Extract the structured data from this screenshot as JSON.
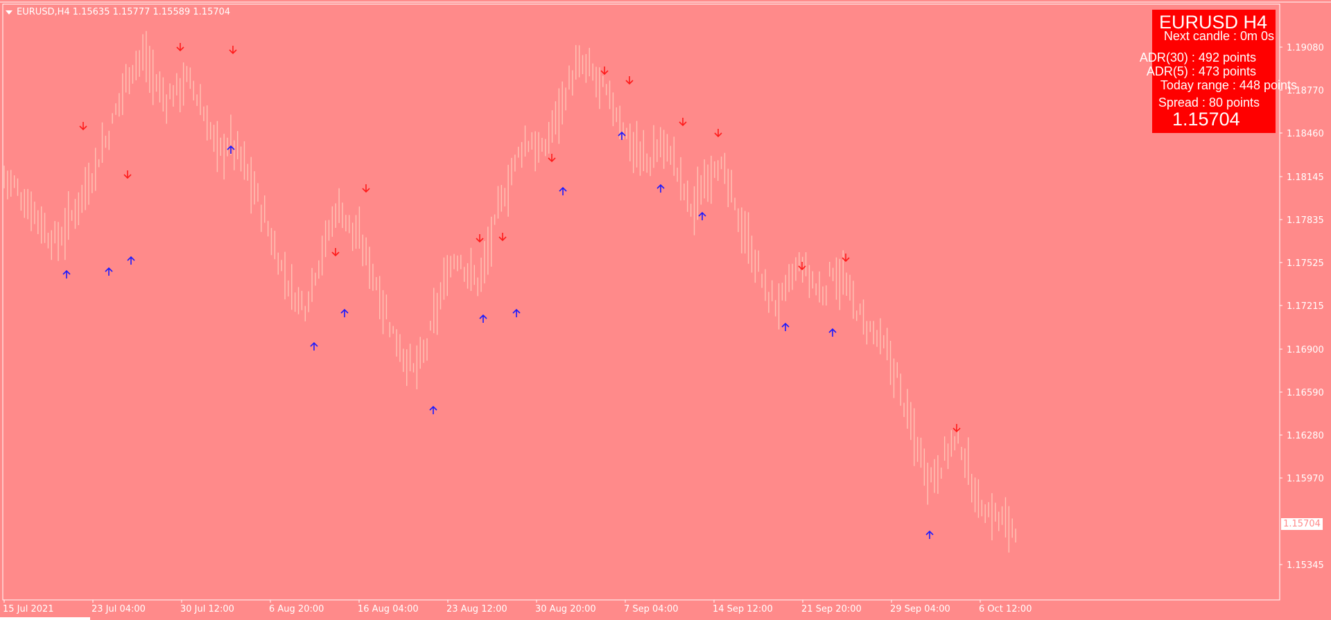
{
  "header": {
    "symbol_label": "EURUSD,H4",
    "ohlc": "1.15635 1.15777 1.15589 1.15704"
  },
  "info_panel": {
    "title": "EURUSD H4",
    "next_candle": "Next candle : 0m 0s",
    "adr30": "ADR(30) : 492 points",
    "adr5": "ADR(5) : 473 points",
    "today_range": "Today range : 448 points",
    "spread": "Spread : 80 points",
    "price": "1.15704",
    "background_color": "#ff0000"
  },
  "colors": {
    "background": "#ff8a8a",
    "bars": "#ffc4b6",
    "grid_axis": "#ffffff",
    "up_arrow": "#1a1aff",
    "down_arrow": "#ff1a1a"
  },
  "current_price_tag": "1.15704",
  "chart_data": {
    "type": "bar",
    "title": "EURUSD,H4",
    "xlabel": "",
    "ylabel": "",
    "ylim": [
      1.1517,
      1.1932
    ],
    "y_ticks": [
      "1.19080",
      "1.18770",
      "1.18460",
      "1.18145",
      "1.17835",
      "1.17525",
      "1.17215",
      "1.16900",
      "1.16590",
      "1.16280",
      "1.15970",
      "1.15345"
    ],
    "x_ticks": [
      "15 Jul 2021",
      "23 Jul 04:00",
      "30 Jul 12:00",
      "6 Aug 20:00",
      "16 Aug 04:00",
      "23 Aug 12:00",
      "30 Aug 20:00",
      "7 Sep 04:00",
      "14 Sep 12:00",
      "21 Sep 20:00",
      "29 Sep 04:00",
      "6 Oct 12:00"
    ],
    "grid": false,
    "series": [
      {
        "values_close": [
          1.1815,
          1.1808,
          1.1795,
          1.1789,
          1.1772,
          1.1768,
          1.1781,
          1.1798,
          1.1812,
          1.1832,
          1.1851,
          1.1878,
          1.1895,
          1.1902,
          1.1884,
          1.187,
          1.1877,
          1.1885,
          1.1872,
          1.185,
          1.1832,
          1.184,
          1.1828,
          1.181,
          1.179,
          1.1765,
          1.1745,
          1.1728,
          1.1722,
          1.1748,
          1.177,
          1.1795,
          1.178,
          1.1768,
          1.1752,
          1.1728,
          1.1705,
          1.1688,
          1.1674,
          1.1685,
          1.1712,
          1.174,
          1.1758,
          1.1748,
          1.1738,
          1.176,
          1.1792,
          1.1812,
          1.1836,
          1.184,
          1.183,
          1.1852,
          1.1872,
          1.189,
          1.1894,
          1.1885,
          1.1873,
          1.186,
          1.1842,
          1.183,
          1.1825,
          1.1838,
          1.1832,
          1.1808,
          1.179,
          1.1808,
          1.1826,
          1.1815,
          1.179,
          1.177,
          1.175,
          1.1728,
          1.1722,
          1.1738,
          1.1752,
          1.174,
          1.1728,
          1.1748,
          1.1738,
          1.1722,
          1.1708,
          1.17,
          1.1688,
          1.167,
          1.164,
          1.1618,
          1.1598,
          1.1605,
          1.1622,
          1.162,
          1.159,
          1.1575,
          1.157,
          1.1565,
          1.1562
        ],
        "name": ""
      }
    ],
    "signals_up": [
      1.175,
      1.1752,
      1.176,
      1.184,
      1.1698,
      1.1722,
      1.1652,
      1.1718,
      1.1722,
      1.181,
      1.185,
      1.1812,
      1.1792,
      1.1712,
      1.1708,
      1.1562
    ],
    "signals_down": [
      1.1845,
      1.181,
      1.1902,
      1.19,
      1.1754,
      1.18,
      1.1764,
      1.1765,
      1.1822,
      1.1885,
      1.1878,
      1.1848,
      1.184,
      1.1744,
      1.175,
      1.1627
    ],
    "current_price": 1.15704
  }
}
